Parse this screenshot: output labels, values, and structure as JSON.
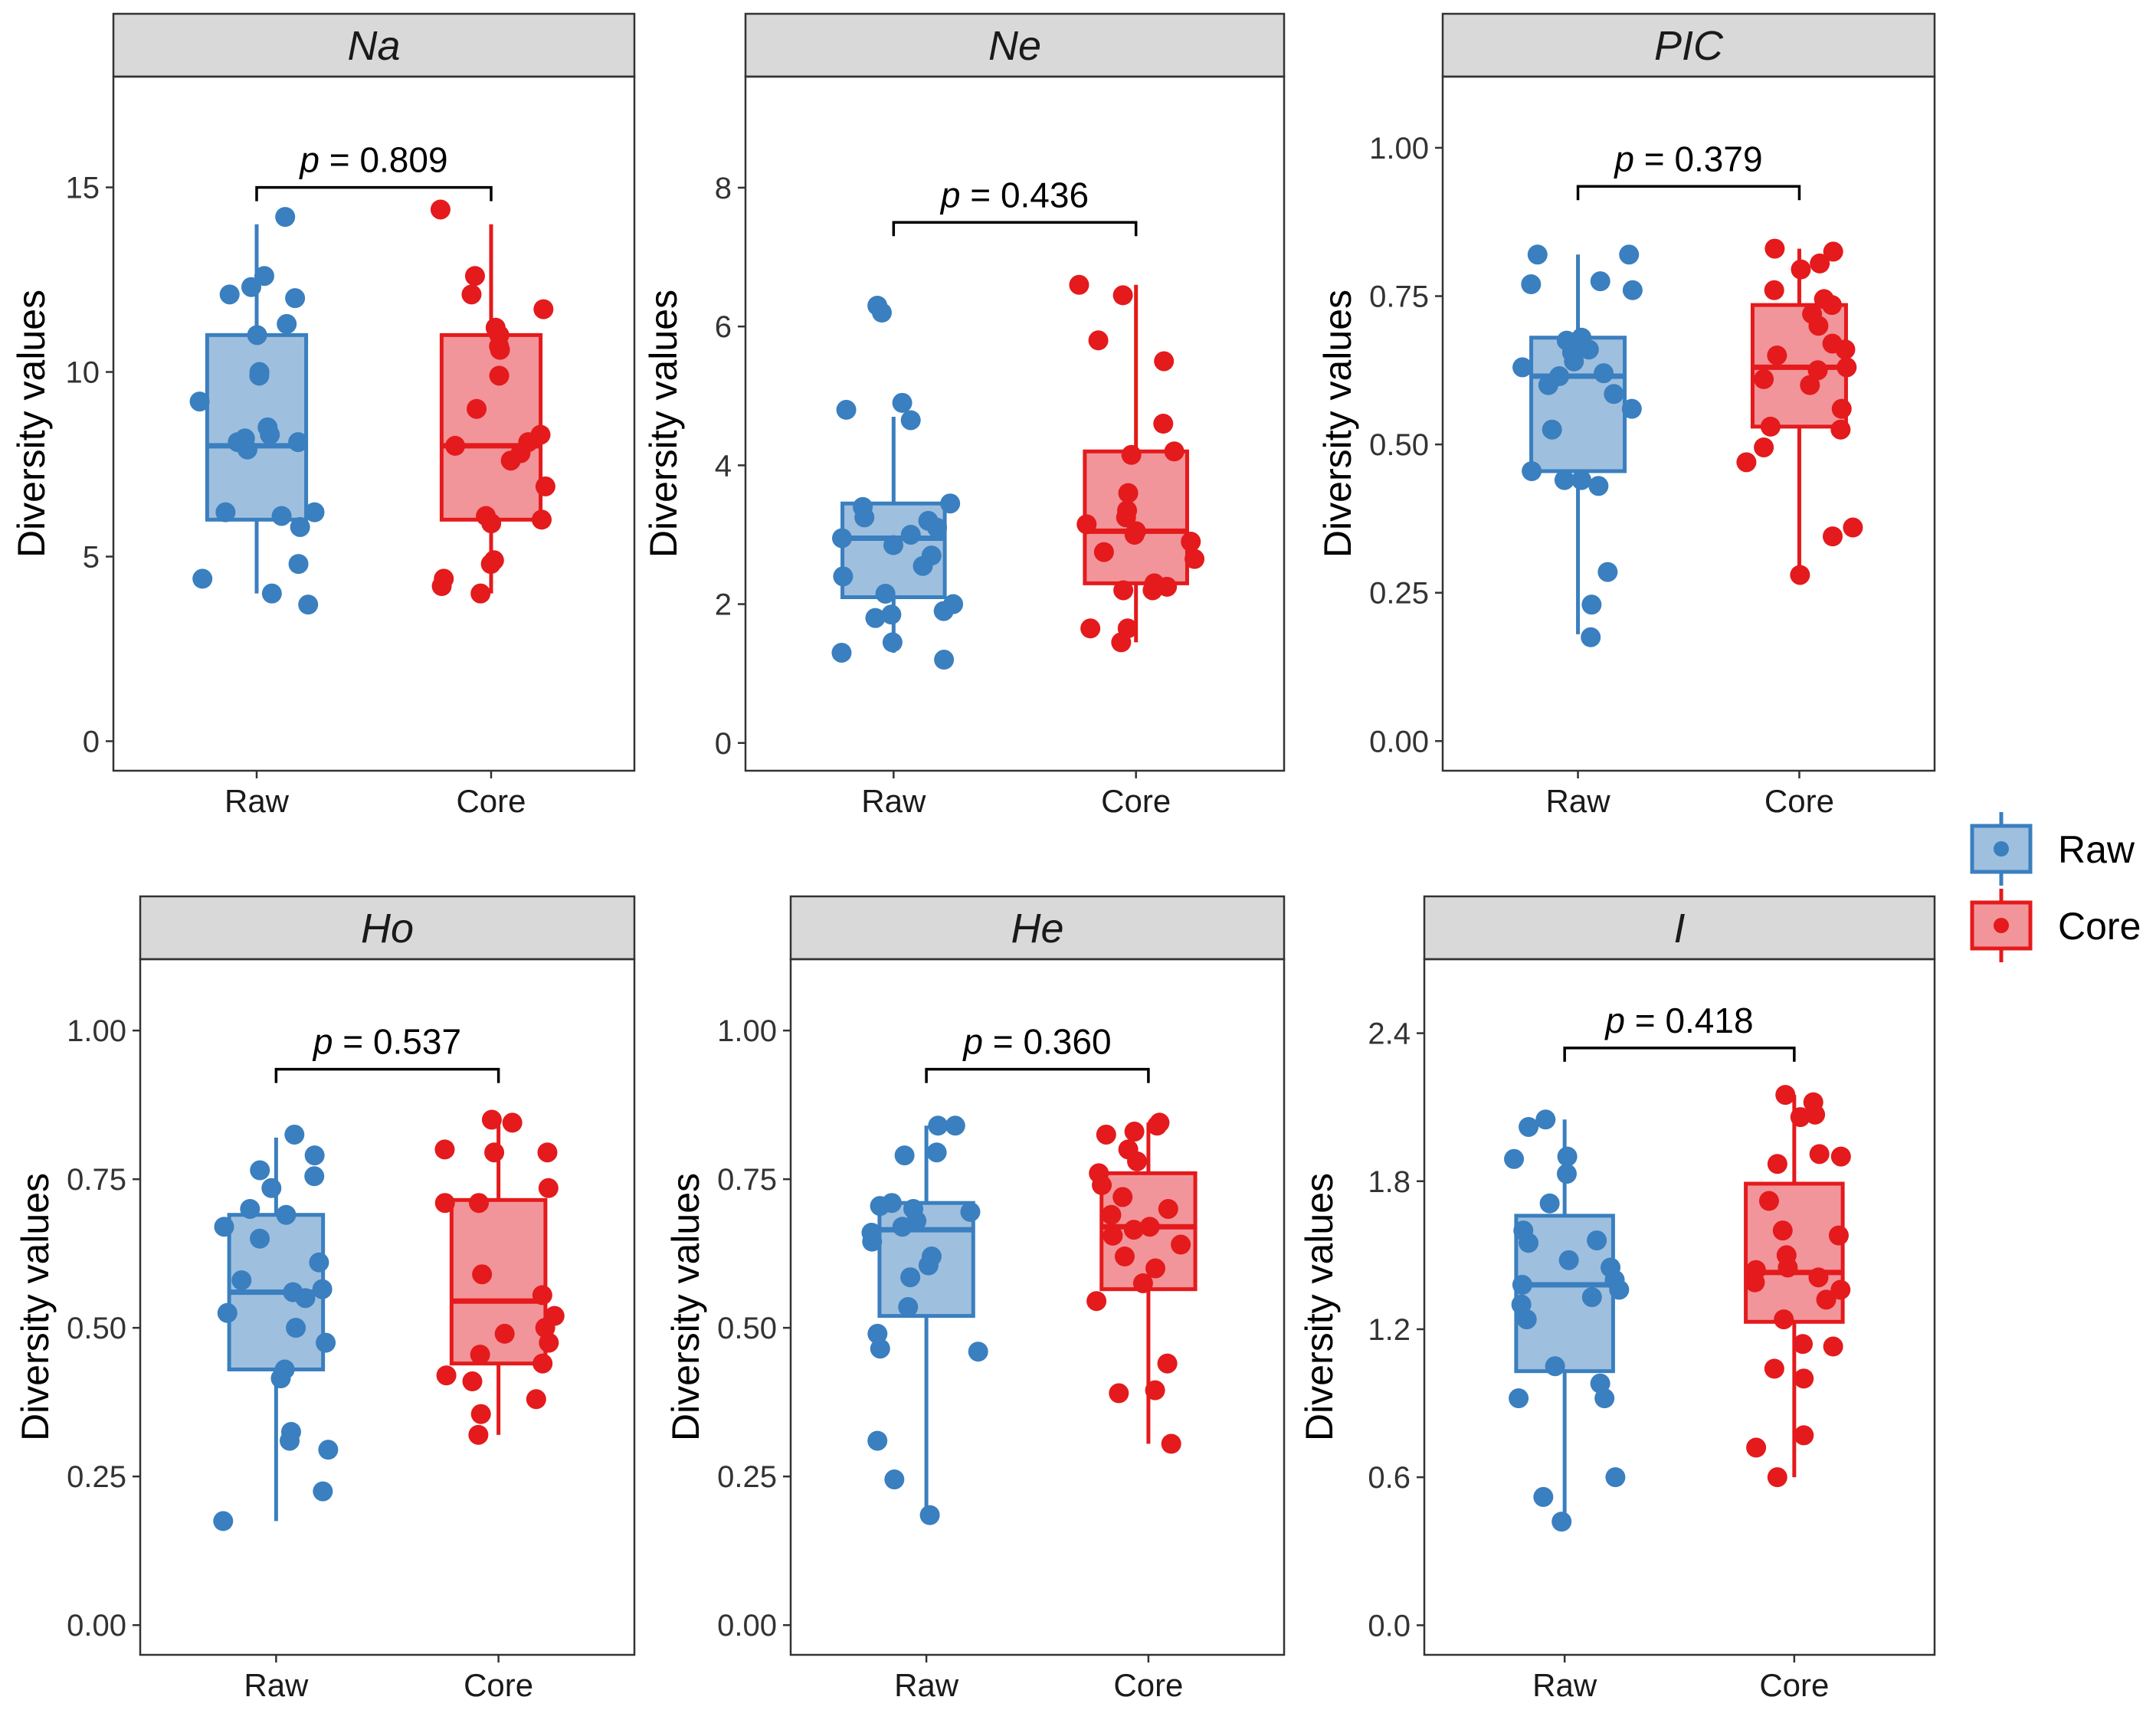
{
  "figure": {
    "type": "boxplot-with-jitter",
    "colors": {
      "Raw": {
        "line": "#3A7FBF",
        "fill": "#9FBFDE",
        "point": "#3A7FBF"
      },
      "Core": {
        "line": "#E41A1C",
        "fill": "#F2959A",
        "point": "#E41A1C"
      },
      "strip": "#D9D9D9",
      "frame": "#333333"
    },
    "legend": {
      "items": [
        {
          "key": "Raw",
          "label": "Raw"
        },
        {
          "key": "Core",
          "label": "Core"
        }
      ]
    }
  },
  "chart_data": [
    {
      "type": "boxplot",
      "title": "Na",
      "ylabel": "Diversity values",
      "categories": [
        "Raw",
        "Core"
      ],
      "ylim": [
        -0.8,
        18.0
      ],
      "yticks": [
        0,
        5,
        10,
        15
      ],
      "ytick_labels": [
        "0",
        "5",
        "10",
        "15"
      ],
      "p_label": "p = 0.809",
      "p_y": 15.0,
      "boxes": [
        {
          "group": "Raw",
          "whisker_low": 4.0,
          "q1": 6.0,
          "median": 8.0,
          "q3": 11.0,
          "whisker_high": 14.0
        },
        {
          "group": "Core",
          "whisker_low": 4.0,
          "q1": 6.0,
          "median": 8.0,
          "q3": 11.0,
          "whisker_high": 14.0
        }
      ],
      "points": [
        {
          "group": "Raw",
          "values": [
            14.2,
            12.6,
            12.3,
            12.1,
            12.0,
            11.3,
            11.0,
            10.0,
            9.9,
            9.2,
            8.5,
            8.3,
            8.2,
            8.1,
            8.1,
            7.9,
            6.2,
            6.2,
            6.1,
            5.8,
            4.8,
            4.4,
            4.0,
            3.7
          ]
        },
        {
          "group": "Core",
          "values": [
            14.4,
            12.6,
            12.1,
            11.7,
            11.2,
            11.0,
            10.7,
            10.6,
            9.9,
            9.0,
            8.3,
            8.1,
            8.0,
            7.8,
            7.6,
            6.9,
            6.1,
            6.0,
            5.9,
            4.9,
            4.8,
            4.4,
            4.2,
            4.0
          ]
        }
      ]
    },
    {
      "type": "boxplot",
      "title": "Ne",
      "ylabel": "Diversity values",
      "categories": [
        "Raw",
        "Core"
      ],
      "ylim": [
        -0.4,
        9.6
      ],
      "yticks": [
        0,
        2,
        4,
        6,
        8
      ],
      "ytick_labels": [
        "0",
        "2",
        "4",
        "6",
        "8"
      ],
      "p_label": "p = 0.436",
      "p_y": 7.5,
      "boxes": [
        {
          "group": "Raw",
          "whisker_low": 1.3,
          "q1": 2.1,
          "median": 2.95,
          "q3": 3.45,
          "whisker_high": 4.7
        },
        {
          "group": "Core",
          "whisker_low": 1.45,
          "q1": 2.3,
          "median": 3.05,
          "q3": 4.2,
          "whisker_high": 6.6
        }
      ],
      "points": [
        {
          "group": "Raw",
          "values": [
            6.3,
            6.2,
            4.9,
            4.8,
            4.65,
            3.45,
            3.4,
            3.25,
            3.2,
            3.1,
            3.0,
            2.95,
            2.85,
            2.7,
            2.55,
            2.4,
            2.15,
            2.0,
            1.9,
            1.85,
            1.8,
            1.45,
            1.3,
            1.2
          ]
        },
        {
          "group": "Core",
          "values": [
            6.6,
            6.45,
            5.8,
            5.5,
            4.6,
            4.2,
            4.15,
            3.6,
            3.35,
            3.25,
            3.15,
            3.05,
            3.0,
            2.9,
            2.75,
            2.65,
            2.3,
            2.25,
            2.2,
            2.2,
            1.65,
            1.65,
            1.45
          ]
        }
      ]
    },
    {
      "type": "boxplot",
      "title": "PIC",
      "ylabel": "Diversity values",
      "categories": [
        "Raw",
        "Core"
      ],
      "ylim": [
        -0.05,
        1.12
      ],
      "yticks": [
        0,
        0.25,
        0.5,
        0.75,
        1.0
      ],
      "ytick_labels": [
        "0.00",
        "0.25",
        "0.50",
        "0.75",
        "1.00"
      ],
      "p_label": "p = 0.379",
      "p_y": 0.935,
      "boxes": [
        {
          "group": "Raw",
          "whisker_low": 0.18,
          "q1": 0.455,
          "median": 0.615,
          "q3": 0.68,
          "whisker_high": 0.82
        },
        {
          "group": "Core",
          "whisker_low": 0.28,
          "q1": 0.53,
          "median": 0.63,
          "q3": 0.735,
          "whisker_high": 0.83
        }
      ],
      "points": [
        {
          "group": "Raw",
          "values": [
            0.82,
            0.82,
            0.775,
            0.77,
            0.76,
            0.68,
            0.675,
            0.66,
            0.655,
            0.64,
            0.63,
            0.62,
            0.615,
            0.6,
            0.585,
            0.56,
            0.525,
            0.455,
            0.44,
            0.44,
            0.43,
            0.285,
            0.23,
            0.175
          ]
        },
        {
          "group": "Core",
          "values": [
            0.83,
            0.825,
            0.805,
            0.795,
            0.76,
            0.745,
            0.735,
            0.72,
            0.7,
            0.67,
            0.66,
            0.65,
            0.63,
            0.625,
            0.61,
            0.6,
            0.56,
            0.53,
            0.525,
            0.495,
            0.47,
            0.36,
            0.345,
            0.28
          ]
        }
      ]
    },
    {
      "type": "boxplot",
      "title": "Ho",
      "ylabel": "Diversity values",
      "categories": [
        "Raw",
        "Core"
      ],
      "ylim": [
        -0.05,
        1.12
      ],
      "yticks": [
        0,
        0.25,
        0.5,
        0.75,
        1.0
      ],
      "ytick_labels": [
        "0.00",
        "0.25",
        "0.50",
        "0.75",
        "1.00"
      ],
      "p_label": "p = 0.537",
      "p_y": 0.935,
      "boxes": [
        {
          "group": "Raw",
          "whisker_low": 0.175,
          "q1": 0.43,
          "median": 0.56,
          "q3": 0.69,
          "whisker_high": 0.82
        },
        {
          "group": "Core",
          "whisker_low": 0.32,
          "q1": 0.44,
          "median": 0.545,
          "q3": 0.715,
          "whisker_high": 0.85
        }
      ],
      "points": [
        {
          "group": "Raw",
          "values": [
            0.825,
            0.79,
            0.765,
            0.755,
            0.735,
            0.7,
            0.69,
            0.67,
            0.65,
            0.61,
            0.58,
            0.565,
            0.56,
            0.55,
            0.525,
            0.5,
            0.475,
            0.43,
            0.415,
            0.325,
            0.31,
            0.295,
            0.225,
            0.175
          ]
        },
        {
          "group": "Core",
          "values": [
            0.85,
            0.845,
            0.8,
            0.795,
            0.795,
            0.735,
            0.71,
            0.71,
            0.59,
            0.555,
            0.52,
            0.5,
            0.49,
            0.475,
            0.455,
            0.44,
            0.42,
            0.41,
            0.38,
            0.355,
            0.32
          ]
        }
      ]
    },
    {
      "type": "boxplot",
      "title": "He",
      "ylabel": "Diversity values",
      "categories": [
        "Raw",
        "Core"
      ],
      "ylim": [
        -0.05,
        1.12
      ],
      "yticks": [
        0,
        0.25,
        0.5,
        0.75,
        1.0
      ],
      "ytick_labels": [
        "0.00",
        "0.25",
        "0.50",
        "0.75",
        "1.00"
      ],
      "p_label": "p = 0.360",
      "p_y": 0.935,
      "boxes": [
        {
          "group": "Raw",
          "whisker_low": 0.19,
          "q1": 0.52,
          "median": 0.665,
          "q3": 0.71,
          "whisker_high": 0.84
        },
        {
          "group": "Core",
          "whisker_low": 0.305,
          "q1": 0.565,
          "median": 0.67,
          "q3": 0.76,
          "whisker_high": 0.845
        }
      ],
      "points": [
        {
          "group": "Raw",
          "values": [
            0.84,
            0.84,
            0.795,
            0.79,
            0.71,
            0.705,
            0.7,
            0.695,
            0.68,
            0.67,
            0.66,
            0.645,
            0.62,
            0.605,
            0.585,
            0.535,
            0.49,
            0.465,
            0.46,
            0.31,
            0.245,
            0.185
          ]
        },
        {
          "group": "Core",
          "values": [
            0.845,
            0.84,
            0.83,
            0.825,
            0.8,
            0.78,
            0.76,
            0.74,
            0.72,
            0.7,
            0.69,
            0.67,
            0.665,
            0.655,
            0.64,
            0.62,
            0.6,
            0.575,
            0.545,
            0.44,
            0.395,
            0.39,
            0.305
          ]
        }
      ]
    },
    {
      "type": "boxplot",
      "title": "I",
      "ylabel": "Diversity values",
      "categories": [
        "Raw",
        "Core"
      ],
      "ylim": [
        -0.12,
        2.7
      ],
      "yticks": [
        0,
        0.6,
        1.2,
        1.8,
        2.4
      ],
      "ytick_labels": [
        "0.0",
        "0.6",
        "1.2",
        "1.8",
        "2.4"
      ],
      "p_label": "p = 0.418",
      "p_y": 2.34,
      "boxes": [
        {
          "group": "Raw",
          "whisker_low": 0.42,
          "q1": 1.03,
          "median": 1.38,
          "q3": 1.66,
          "whisker_high": 2.05
        },
        {
          "group": "Core",
          "whisker_low": 0.6,
          "q1": 1.23,
          "median": 1.43,
          "q3": 1.79,
          "whisker_high": 2.15
        }
      ],
      "points": [
        {
          "group": "Raw",
          "values": [
            2.05,
            2.02,
            1.9,
            1.89,
            1.83,
            1.71,
            1.6,
            1.56,
            1.55,
            1.48,
            1.45,
            1.4,
            1.38,
            1.36,
            1.33,
            1.3,
            1.24,
            1.05,
            0.98,
            0.92,
            0.92,
            0.6,
            0.52,
            0.42
          ]
        },
        {
          "group": "Core",
          "values": [
            2.15,
            2.12,
            2.07,
            2.06,
            1.91,
            1.9,
            1.87,
            1.72,
            1.6,
            1.58,
            1.5,
            1.45,
            1.44,
            1.41,
            1.39,
            1.36,
            1.32,
            1.24,
            1.14,
            1.13,
            1.04,
            1.0,
            0.77,
            0.72,
            0.6
          ]
        }
      ]
    }
  ]
}
